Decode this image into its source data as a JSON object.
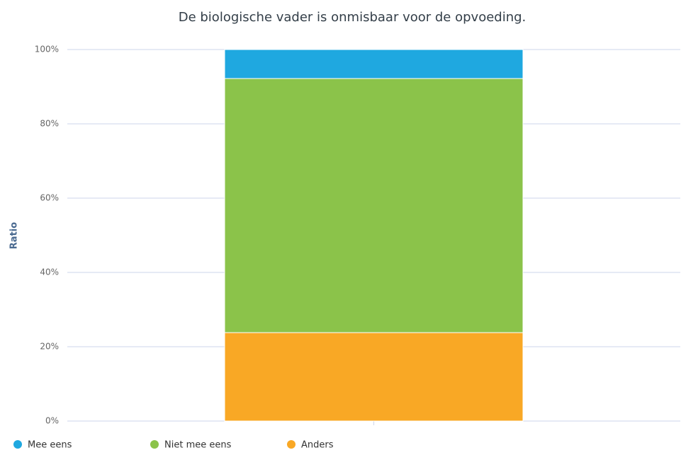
{
  "chart_data": {
    "type": "stacked_bar",
    "title": "De biologische vader is onmisbaar voor de opvoeding.",
    "y_label": "Ratio",
    "categories": [
      null
    ],
    "series": [
      {
        "name": "Mee eens",
        "color": "#1fa8e0",
        "values": [
          7.8
        ]
      },
      {
        "name": "Niet mee eens",
        "color": "#8bc34a",
        "values": [
          68.4
        ]
      },
      {
        "name": "Anders",
        "color": "#f9a825",
        "values": [
          23.8
        ]
      }
    ],
    "ylim": [
      0,
      100
    ],
    "yticks": [
      {
        "value": 0,
        "label": "0%"
      },
      {
        "value": 20,
        "label": "20%"
      },
      {
        "value": 40,
        "label": "40%"
      },
      {
        "value": 60,
        "label": "60%"
      },
      {
        "value": 80,
        "label": "80%"
      },
      {
        "value": 100,
        "label": "100%"
      }
    ],
    "grid": true,
    "legend": "bottom-left"
  }
}
